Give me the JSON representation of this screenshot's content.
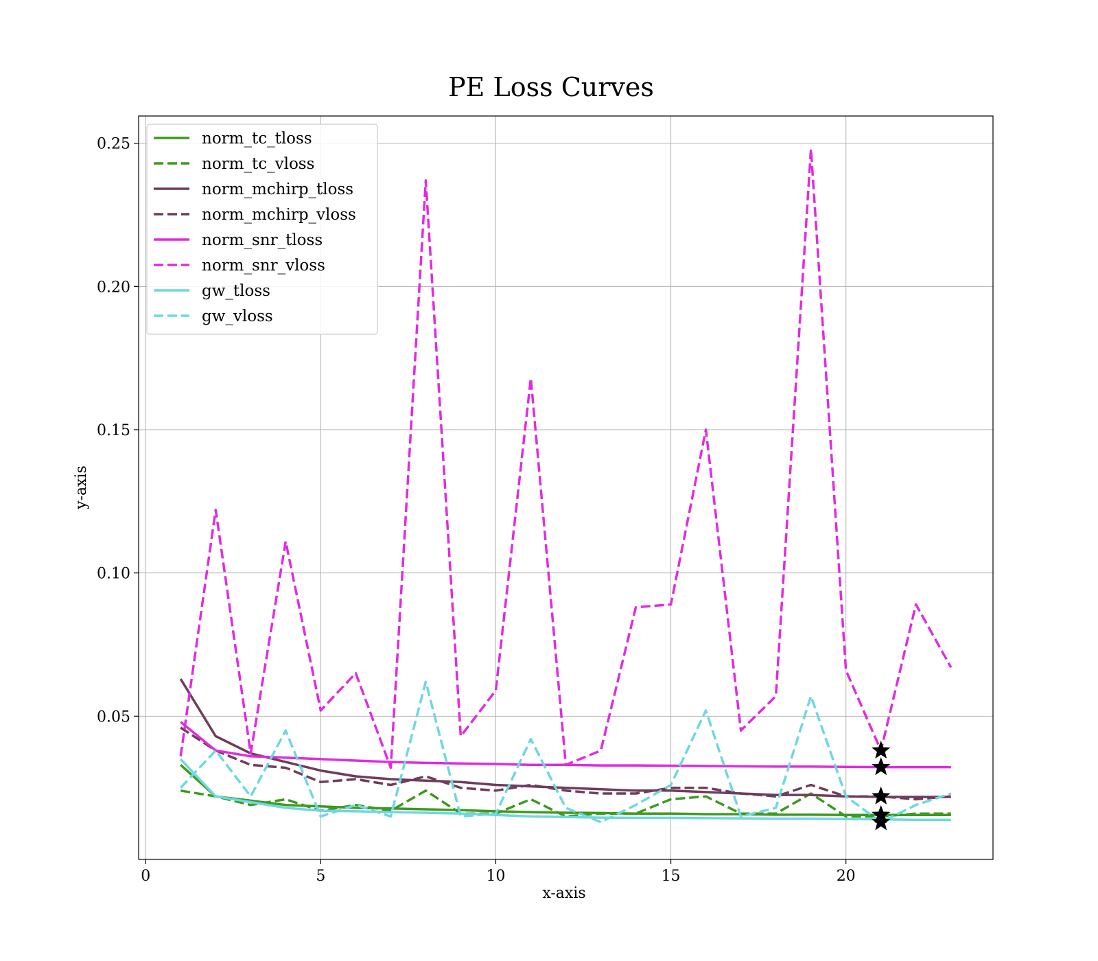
{
  "chart_data": {
    "type": "line",
    "title": "PE Loss Curves",
    "xlabel": "x-axis",
    "ylabel": "y-axis",
    "xlim": [
      -0.2,
      24.2
    ],
    "ylim": [
      0.0,
      0.2595
    ],
    "xticks": [
      0,
      5,
      10,
      15,
      20
    ],
    "yticks": [
      0.05,
      0.1,
      0.15,
      0.2,
      0.25
    ],
    "ytick_labels": [
      "0.05",
      "0.10",
      "0.15",
      "0.20",
      "0.25"
    ],
    "grid": true,
    "legend_position": "upper-left",
    "x": [
      1,
      2,
      3,
      4,
      5,
      6,
      7,
      8,
      9,
      10,
      11,
      12,
      13,
      14,
      15,
      16,
      17,
      18,
      19,
      20,
      21,
      22,
      23
    ],
    "series": [
      {
        "name": "norm_tc_tloss",
        "color": "#3c9a1e",
        "dash": "solid",
        "values": [
          0.033,
          0.022,
          0.0205,
          0.019,
          0.0185,
          0.018,
          0.0178,
          0.0175,
          0.0172,
          0.0168,
          0.0165,
          0.0163,
          0.0162,
          0.016,
          0.016,
          0.0158,
          0.0158,
          0.0156,
          0.0156,
          0.0155,
          0.0155,
          0.0155,
          0.0155
        ]
      },
      {
        "name": "norm_tc_vloss",
        "color": "#3c9a1e",
        "dash": "dashed",
        "values": [
          0.024,
          0.022,
          0.019,
          0.021,
          0.017,
          0.019,
          0.017,
          0.024,
          0.016,
          0.016,
          0.021,
          0.015,
          0.016,
          0.016,
          0.021,
          0.022,
          0.016,
          0.016,
          0.023,
          0.015,
          0.015,
          0.016,
          0.016
        ]
      },
      {
        "name": "norm_mchirp_tloss",
        "color": "#6e3d5a",
        "dash": "solid",
        "values": [
          0.063,
          0.043,
          0.037,
          0.034,
          0.031,
          0.029,
          0.028,
          0.0275,
          0.027,
          0.026,
          0.0255,
          0.025,
          0.0245,
          0.024,
          0.024,
          0.0235,
          0.023,
          0.0225,
          0.0225,
          0.022,
          0.0218,
          0.0218,
          0.0218
        ]
      },
      {
        "name": "norm_mchirp_vloss",
        "color": "#6e3d5a",
        "dash": "dashed",
        "values": [
          0.046,
          0.038,
          0.033,
          0.032,
          0.027,
          0.028,
          0.026,
          0.029,
          0.025,
          0.024,
          0.026,
          0.024,
          0.023,
          0.023,
          0.025,
          0.025,
          0.023,
          0.022,
          0.026,
          0.022,
          0.022,
          0.021,
          0.022
        ]
      },
      {
        "name": "norm_snr_tloss",
        "color": "#e02be0",
        "dash": "solid",
        "values": [
          0.048,
          0.038,
          0.036,
          0.0355,
          0.035,
          0.0345,
          0.034,
          0.0337,
          0.0335,
          0.0333,
          0.033,
          0.033,
          0.0328,
          0.0328,
          0.0327,
          0.0326,
          0.0325,
          0.0324,
          0.0324,
          0.0323,
          0.0322,
          0.0322,
          0.0322
        ]
      },
      {
        "name": "norm_snr_vloss",
        "color": "#e02be0",
        "dash": "dashed",
        "values": [
          0.036,
          0.122,
          0.037,
          0.111,
          0.052,
          0.065,
          0.032,
          0.237,
          0.043,
          0.059,
          0.168,
          0.033,
          0.038,
          0.088,
          0.089,
          0.15,
          0.045,
          0.057,
          0.248,
          0.066,
          0.038,
          0.089,
          0.067
        ]
      },
      {
        "name": "gw_tloss",
        "color": "#6fd7e0",
        "dash": "solid",
        "values": [
          0.035,
          0.022,
          0.02,
          0.018,
          0.017,
          0.0168,
          0.0165,
          0.0163,
          0.016,
          0.0155,
          0.015,
          0.0148,
          0.0146,
          0.0145,
          0.0145,
          0.0144,
          0.0143,
          0.0142,
          0.0142,
          0.0141,
          0.014,
          0.0138,
          0.0138
        ]
      },
      {
        "name": "gw_vloss",
        "color": "#6fd7e0",
        "dash": "dashed",
        "values": [
          0.025,
          0.038,
          0.022,
          0.045,
          0.015,
          0.019,
          0.015,
          0.062,
          0.015,
          0.016,
          0.042,
          0.018,
          0.013,
          0.019,
          0.026,
          0.052,
          0.015,
          0.018,
          0.057,
          0.022,
          0.013,
          0.019,
          0.023
        ]
      }
    ],
    "markers": [
      {
        "x": 21,
        "y": 0.038
      },
      {
        "x": 21,
        "y": 0.0322
      },
      {
        "x": 21,
        "y": 0.022
      },
      {
        "x": 21,
        "y": 0.0155
      },
      {
        "x": 21,
        "y": 0.013
      }
    ]
  }
}
